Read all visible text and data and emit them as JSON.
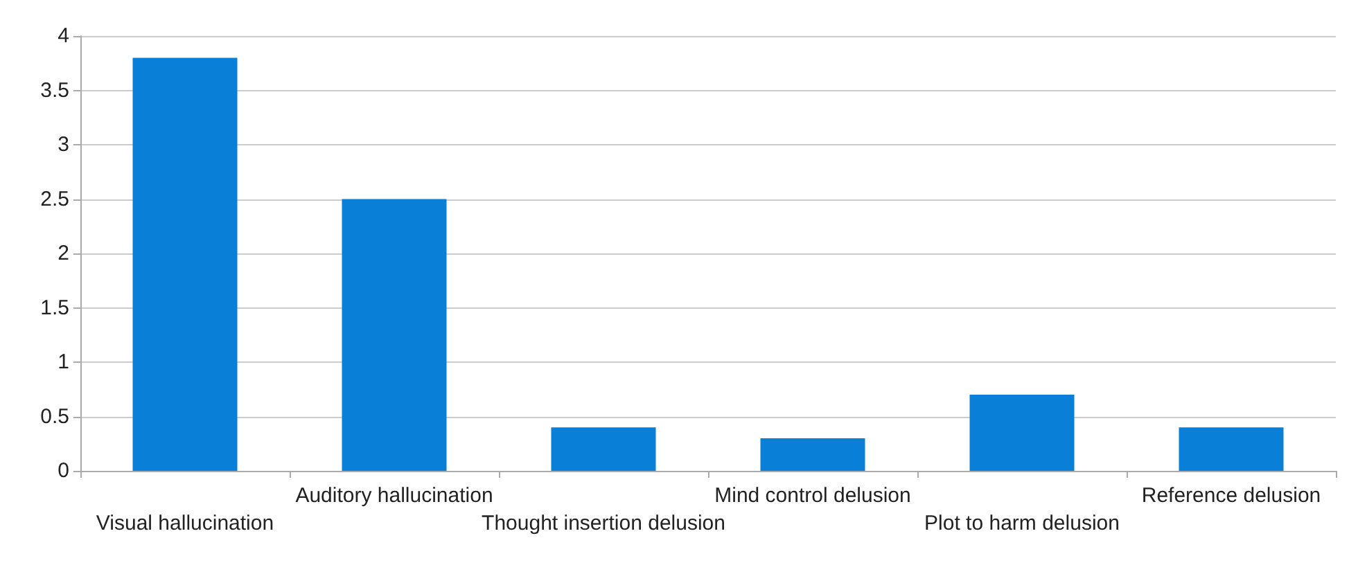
{
  "chart_data": {
    "type": "bar",
    "categories": [
      "Visual hallucination",
      "Auditory hallucination",
      "Thought insertion delusion",
      "Mind control delusion",
      "Plot to harm delusion",
      "Reference delusion"
    ],
    "values": [
      3.8,
      2.5,
      0.4,
      0.3,
      0.7,
      0.4
    ],
    "color": "#0a7fd8",
    "ylim": [
      0,
      4
    ],
    "yticks": [
      0,
      0.5,
      1,
      1.5,
      2,
      2.5,
      3,
      3.5,
      4
    ],
    "grid": "y"
  }
}
